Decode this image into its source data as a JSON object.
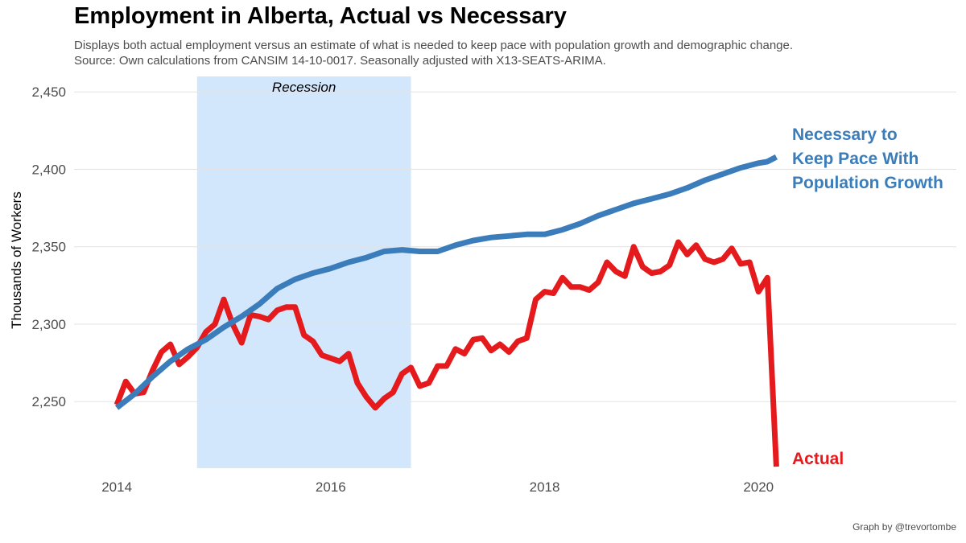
{
  "title": "Employment in Alberta, Actual vs Necessary",
  "subtitle_line1": "Displays both actual employment versus an estimate of what is needed to keep pace with population growth and demographic change.",
  "subtitle_line2": "Source: Own calculations from CANSIM 14-10-0017. Seasonally adjusted with X13-SEATS-ARIMA.",
  "credit": "Graph by @trevortombe",
  "colors": {
    "necessary": "#3a7dba",
    "actual": "#e41a1c",
    "recession": "#d3e7fc",
    "grid": "#e3e3e3"
  },
  "chart_data": {
    "type": "line",
    "title": "Employment in Alberta, Actual vs Necessary",
    "xlabel": "",
    "ylabel": "Thousands of Workers",
    "xlim": [
      2013.6,
      2021.85
    ],
    "ylim": [
      2207,
      2460
    ],
    "x_ticks": [
      2014,
      2016,
      2018,
      2020
    ],
    "x_tick_labels": [
      "2014",
      "2016",
      "2018",
      "2020"
    ],
    "y_ticks": [
      2250,
      2300,
      2350,
      2400,
      2450
    ],
    "y_tick_labels": [
      "2,250",
      "2,300",
      "2,350",
      "2,400",
      "2,450"
    ],
    "grid": true,
    "shaded_regions": [
      {
        "label": "Recession",
        "x_start": 2014.75,
        "x_end": 2016.75
      }
    ],
    "series": [
      {
        "name": "Necessary to Keep Pace With Population Growth",
        "label_lines": [
          "Necessary to",
          "Keep Pace With",
          "Population Growth"
        ],
        "color": "#3a7dba",
        "x": [
          2014.0,
          2014.167,
          2014.333,
          2014.5,
          2014.667,
          2014.833,
          2015.0,
          2015.167,
          2015.333,
          2015.5,
          2015.667,
          2015.833,
          2016.0,
          2016.167,
          2016.333,
          2016.5,
          2016.667,
          2016.833,
          2017.0,
          2017.167,
          2017.333,
          2017.5,
          2017.667,
          2017.833,
          2018.0,
          2018.167,
          2018.333,
          2018.5,
          2018.667,
          2018.833,
          2019.0,
          2019.167,
          2019.333,
          2019.5,
          2019.667,
          2019.833,
          2020.0,
          2020.083,
          2020.167
        ],
        "y": [
          2246,
          2255,
          2266,
          2276,
          2284,
          2290,
          2298,
          2305,
          2313,
          2323,
          2329,
          2333,
          2336,
          2340,
          2343,
          2347,
          2348,
          2347,
          2347,
          2351,
          2354,
          2356,
          2357,
          2358,
          2358,
          2361,
          2365,
          2370,
          2374,
          2378,
          2381,
          2384,
          2388,
          2393,
          2397,
          2401,
          2404,
          2405,
          2408
        ]
      },
      {
        "name": "Actual",
        "label_lines": [
          "Actual"
        ],
        "color": "#e41a1c",
        "x": [
          2014.0,
          2014.083,
          2014.167,
          2014.25,
          2014.333,
          2014.417,
          2014.5,
          2014.583,
          2014.667,
          2014.75,
          2014.833,
          2014.917,
          2015.0,
          2015.083,
          2015.167,
          2015.25,
          2015.333,
          2015.417,
          2015.5,
          2015.583,
          2015.667,
          2015.75,
          2015.833,
          2015.917,
          2016.0,
          2016.083,
          2016.167,
          2016.25,
          2016.333,
          2016.417,
          2016.5,
          2016.583,
          2016.667,
          2016.75,
          2016.833,
          2016.917,
          2017.0,
          2017.083,
          2017.167,
          2017.25,
          2017.333,
          2017.417,
          2017.5,
          2017.583,
          2017.667,
          2017.75,
          2017.833,
          2017.917,
          2018.0,
          2018.083,
          2018.167,
          2018.25,
          2018.333,
          2018.417,
          2018.5,
          2018.583,
          2018.667,
          2018.75,
          2018.833,
          2018.917,
          2019.0,
          2019.083,
          2019.167,
          2019.25,
          2019.333,
          2019.417,
          2019.5,
          2019.583,
          2019.667,
          2019.75,
          2019.833,
          2019.917,
          2020.0,
          2020.083,
          2020.167
        ],
        "y": [
          2248,
          2263,
          2255,
          2256,
          2270,
          2282,
          2287,
          2274,
          2279,
          2285,
          2295,
          2300,
          2316,
          2300,
          2288,
          2306,
          2305,
          2303,
          2309,
          2311,
          2311,
          2293,
          2289,
          2280,
          2278,
          2276,
          2281,
          2262,
          2253,
          2246,
          2252,
          2256,
          2268,
          2272,
          2260,
          2262,
          2273,
          2273,
          2284,
          2281,
          2290,
          2291,
          2283,
          2287,
          2282,
          2289,
          2291,
          2316,
          2321,
          2320,
          2330,
          2324,
          2324,
          2322,
          2327,
          2340,
          2334,
          2331,
          2350,
          2337,
          2333,
          2334,
          2338,
          2353,
          2345,
          2351,
          2342,
          2340,
          2342,
          2349,
          2339,
          2340,
          2321,
          2330,
          2208
        ]
      }
    ]
  }
}
